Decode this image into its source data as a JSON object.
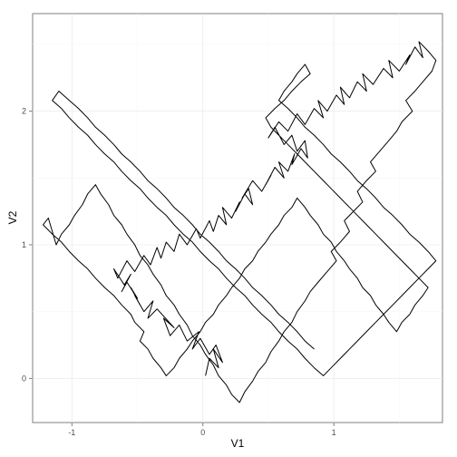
{
  "chart_data": {
    "type": "line",
    "title": "",
    "xlabel": "V1",
    "ylabel": "V2",
    "xlim": [
      -1.3,
      1.83
    ],
    "ylim": [
      -0.33,
      2.73
    ],
    "grid": true,
    "x_ticks": [
      -1,
      0,
      1
    ],
    "x_tick_labels": [
      "-1",
      "0",
      "1"
    ],
    "y_ticks": [
      0,
      1,
      2
    ],
    "y_tick_labels": [
      "0",
      "1",
      "2"
    ],
    "series": [
      {
        "color": "#000000",
        "x": [
          0.02,
          0.05,
          0.12,
          0.08,
          0.15,
          0.1,
          0.05,
          -0.02,
          -0.08,
          -0.03,
          -0.12,
          -0.18,
          -0.25,
          -0.3,
          -0.22,
          -0.35,
          -0.42,
          -0.38,
          -0.45,
          -0.52,
          -0.48,
          -0.55,
          -0.5,
          -0.58,
          -0.62,
          -0.55,
          -0.6,
          -0.68,
          -0.65,
          -0.58,
          -0.52,
          -0.45,
          -0.4,
          -0.35,
          -0.32,
          -0.28,
          -0.22,
          -0.18,
          -0.12,
          -0.05,
          -0.02,
          0.05,
          0.08,
          0.12,
          0.18,
          0.15,
          0.22,
          0.28,
          0.25,
          0.32,
          0.38,
          0.35,
          0.3,
          0.38,
          0.45,
          0.52,
          0.48,
          0.55,
          0.62,
          0.58,
          0.65,
          0.7,
          0.68,
          0.75,
          0.8,
          0.78,
          0.72,
          0.68,
          0.62,
          0.55,
          0.5,
          0.58,
          0.65,
          0.72,
          0.78,
          0.85,
          0.92,
          0.88,
          0.95,
          1.02,
          1.08,
          1.05,
          1.12,
          1.18,
          1.25,
          1.22,
          1.3,
          1.38,
          1.45,
          1.42,
          1.5,
          1.58,
          1.55,
          1.62,
          1.68,
          1.65,
          1.72,
          1.78,
          1.75,
          1.68,
          1.62,
          1.55,
          1.6,
          1.52,
          1.48,
          1.42,
          1.35,
          1.28,
          1.32,
          1.25,
          1.18,
          1.22,
          1.15,
          1.08,
          1.12,
          1.05,
          0.98,
          1.02,
          0.95,
          0.88,
          0.82,
          0.78,
          0.72,
          0.68,
          0.62,
          0.58,
          0.52,
          0.48,
          0.42,
          0.38,
          0.32,
          0.28,
          0.22,
          0.18,
          0.12,
          0.08,
          0.02,
          -0.02,
          -0.08,
          -0.12,
          -0.18,
          -0.22,
          -0.28,
          -0.32,
          -0.38,
          -0.42,
          -0.48,
          -0.52,
          -0.58,
          -0.62,
          -0.68,
          -0.72,
          -0.78,
          -0.82,
          -0.88,
          -0.92,
          -0.98,
          -1.02,
          -1.08,
          -1.12,
          -1.18,
          -1.22,
          -1.15,
          -1.08,
          -1.02,
          -0.95,
          -0.88,
          -0.82,
          -0.75,
          -0.68,
          -0.62,
          -0.55,
          -0.52,
          -0.45,
          -0.48,
          -0.42,
          -0.38,
          -0.32,
          -0.28,
          -0.22,
          -0.18,
          -0.12,
          -0.08,
          -0.02,
          0.02,
          0.08,
          0.12,
          0.18,
          0.22,
          0.28,
          0.32,
          0.38,
          0.42,
          0.48,
          0.52,
          0.58,
          0.62,
          0.68,
          0.72,
          0.78,
          0.82,
          0.88,
          0.92,
          0.98,
          1.02,
          1.08,
          1.12,
          1.18,
          1.22,
          1.28,
          1.32,
          1.38,
          1.42,
          1.48,
          1.52,
          1.58,
          1.62,
          1.68,
          1.72,
          1.65,
          1.58,
          1.52,
          1.45,
          1.38,
          1.32,
          1.25,
          1.18,
          1.12,
          1.05,
          0.98,
          0.92,
          0.85,
          0.78,
          0.72,
          0.65,
          0.58,
          0.52,
          0.48,
          0.55,
          0.62,
          0.68,
          0.75,
          0.82,
          0.78,
          0.72,
          0.68,
          0.62,
          0.58,
          0.65,
          0.72,
          0.78,
          0.85,
          0.92,
          0.98,
          1.05,
          1.12,
          1.18,
          1.25,
          1.32,
          1.38,
          1.45,
          1.52,
          1.58,
          1.65,
          1.72,
          1.78,
          1.72,
          1.65,
          1.58,
          1.52,
          1.45,
          1.38,
          1.32,
          1.25,
          1.18,
          1.12,
          1.05,
          0.98,
          0.92,
          0.85,
          0.78,
          0.72,
          0.65,
          0.58,
          0.52,
          0.45,
          0.38,
          0.32,
          0.25,
          0.18,
          0.12,
          0.05,
          -0.02,
          -0.08,
          -0.15,
          -0.22,
          -0.28,
          -0.35,
          -0.42,
          -0.48,
          -0.55,
          -0.62,
          -0.68,
          -0.75,
          -0.82,
          -0.88,
          -0.95,
          -1.02,
          -1.08,
          -1.15,
          -1.1,
          -1.02,
          -0.95,
          -0.88,
          -0.82,
          -0.75,
          -0.68,
          -0.62,
          -0.55,
          -0.48,
          -0.42,
          -0.35,
          -0.28,
          -0.22,
          -0.15,
          -0.08,
          -0.02,
          0.05,
          0.12,
          0.18,
          0.25,
          0.32,
          0.38,
          0.45,
          0.52,
          0.58,
          0.65,
          0.72,
          0.78,
          0.85
        ],
        "y": [
          0.02,
          0.15,
          0.08,
          0.22,
          0.12,
          0.25,
          0.18,
          0.3,
          0.22,
          0.35,
          0.28,
          0.4,
          0.32,
          0.45,
          0.38,
          0.52,
          0.45,
          0.58,
          0.5,
          0.62,
          0.55,
          0.68,
          0.6,
          0.72,
          0.65,
          0.78,
          0.7,
          0.82,
          0.75,
          0.88,
          0.8,
          0.92,
          0.85,
          0.98,
          0.9,
          1.02,
          0.95,
          1.08,
          1.0,
          1.12,
          1.05,
          1.18,
          1.1,
          1.22,
          1.15,
          1.28,
          1.2,
          1.32,
          1.25,
          1.38,
          1.3,
          1.42,
          1.35,
          1.48,
          1.4,
          1.52,
          1.45,
          1.58,
          1.5,
          1.62,
          1.55,
          1.68,
          1.6,
          1.72,
          1.65,
          1.78,
          1.7,
          1.82,
          1.75,
          1.88,
          1.8,
          1.92,
          1.85,
          1.98,
          1.9,
          2.02,
          1.95,
          2.08,
          2.0,
          2.12,
          2.05,
          2.18,
          2.1,
          2.22,
          2.15,
          2.28,
          2.2,
          2.32,
          2.25,
          2.38,
          2.3,
          2.42,
          2.35,
          2.48,
          2.4,
          2.52,
          2.45,
          2.38,
          2.3,
          2.22,
          2.15,
          2.08,
          2.0,
          1.92,
          1.85,
          1.78,
          1.7,
          1.62,
          1.55,
          1.48,
          1.4,
          1.32,
          1.25,
          1.18,
          1.1,
          1.02,
          0.95,
          0.88,
          0.8,
          0.72,
          0.65,
          0.58,
          0.5,
          0.42,
          0.35,
          0.28,
          0.2,
          0.12,
          0.05,
          -0.02,
          -0.1,
          -0.18,
          -0.12,
          -0.05,
          0.02,
          0.1,
          0.18,
          0.25,
          0.32,
          0.4,
          0.48,
          0.55,
          0.62,
          0.7,
          0.78,
          0.85,
          0.92,
          1.0,
          1.08,
          1.15,
          1.22,
          1.3,
          1.38,
          1.45,
          1.38,
          1.3,
          1.22,
          1.15,
          1.08,
          1.0,
          1.2,
          1.15,
          1.08,
          1.02,
          0.95,
          0.88,
          0.82,
          0.75,
          0.68,
          0.62,
          0.55,
          0.48,
          0.42,
          0.35,
          0.28,
          0.22,
          0.15,
          0.08,
          0.02,
          0.08,
          0.15,
          0.22,
          0.28,
          0.35,
          0.42,
          0.48,
          0.55,
          0.62,
          0.68,
          0.75,
          0.82,
          0.88,
          0.95,
          1.02,
          1.08,
          1.15,
          1.22,
          1.28,
          1.35,
          1.28,
          1.22,
          1.15,
          1.08,
          1.02,
          0.95,
          0.88,
          0.82,
          0.75,
          0.68,
          0.62,
          0.55,
          0.48,
          0.42,
          0.35,
          0.42,
          0.48,
          0.55,
          0.62,
          0.68,
          0.75,
          0.82,
          0.88,
          0.95,
          1.02,
          1.08,
          1.15,
          1.22,
          1.28,
          1.35,
          1.42,
          1.48,
          1.55,
          1.62,
          1.68,
          1.75,
          1.82,
          1.88,
          1.95,
          2.02,
          2.08,
          2.15,
          2.22,
          2.28,
          2.35,
          2.28,
          2.22,
          2.15,
          2.08,
          2.02,
          1.95,
          1.88,
          1.82,
          1.75,
          1.68,
          1.62,
          1.55,
          1.48,
          1.42,
          1.35,
          1.28,
          1.22,
          1.15,
          1.08,
          1.02,
          0.95,
          0.88,
          0.82,
          0.75,
          0.68,
          0.62,
          0.55,
          0.48,
          0.42,
          0.35,
          0.28,
          0.22,
          0.15,
          0.08,
          0.02,
          0.08,
          0.15,
          0.22,
          0.28,
          0.35,
          0.42,
          0.48,
          0.55,
          0.62,
          0.68,
          0.75,
          0.82,
          0.88,
          0.95,
          1.02,
          1.08,
          1.15,
          1.22,
          1.28,
          1.35,
          1.42,
          1.48,
          1.55,
          1.62,
          1.68,
          1.75,
          1.82,
          1.88,
          1.95,
          2.02,
          2.08,
          2.15,
          2.08,
          2.02,
          1.95,
          1.88,
          1.82,
          1.75,
          1.68,
          1.62,
          1.55,
          1.48,
          1.42,
          1.35,
          1.28,
          1.22,
          1.15,
          1.08,
          1.02,
          0.95,
          0.88,
          0.82,
          0.75,
          0.68,
          0.62,
          0.55,
          0.48,
          0.42,
          0.35,
          0.28,
          0.22
        ]
      }
    ]
  }
}
